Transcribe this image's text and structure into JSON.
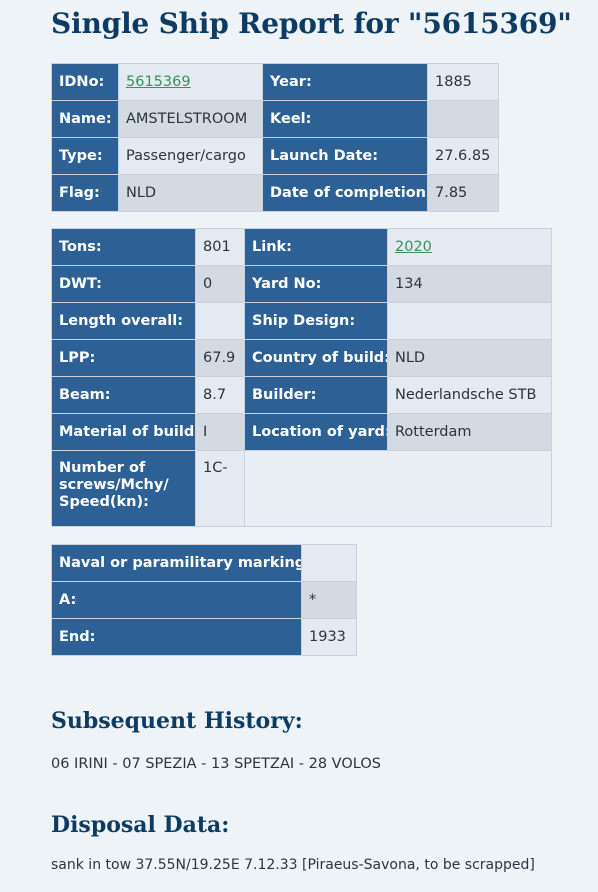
{
  "page_title": "Single Ship Report for \"5615369\"",
  "table1": {
    "idno_label": "IDNo:",
    "idno_value": "5615369",
    "year_label": "Year:",
    "year_value": "1885",
    "name_label": "Name:",
    "name_value": "AMSTELSTROOM",
    "keel_label": "Keel:",
    "keel_value": "",
    "type_label": "Type:",
    "type_value": "Passenger/cargo",
    "launch_label": "Launch Date:",
    "launch_value": "27.6.85",
    "flag_label": "Flag:",
    "flag_value": "NLD",
    "completion_label": "Date of completion:",
    "completion_value": "7.85"
  },
  "table2": {
    "tons_label": "Tons:",
    "tons_value": "801",
    "link_label": "Link:",
    "link_value": "2020",
    "dwt_label": "DWT:",
    "dwt_value": "0",
    "yard_label": "Yard No:",
    "yard_value": "134",
    "length_label": "Length overall:",
    "length_value": "",
    "design_label": "Ship Design:",
    "design_value": "",
    "lpp_label": "LPP:",
    "lpp_value": "67.9",
    "country_label": "Country of build:",
    "country_value": "NLD",
    "beam_label": "Beam:",
    "beam_value": "8.7",
    "builder_label": "Builder:",
    "builder_value": "Nederlandsche STB",
    "material_label": "Material of build:",
    "material_value": "I",
    "location_label": "Location of yard:",
    "location_value": "Rotterdam",
    "screws_label": "Number of screws/Mchy/ Speed(kn):",
    "screws_value": "1C-"
  },
  "table3": {
    "naval_label": "Naval or paramilitary marking :",
    "naval_value": "",
    "a_label": "A:",
    "a_value": "*",
    "end_label": "End:",
    "end_value": "1933"
  },
  "history": {
    "heading": "Subsequent History:",
    "text": "06 IRINI - 07 SPEZIA - 13 SPETZAI - 28 VOLOS"
  },
  "disposal": {
    "heading": "Disposal Data:",
    "text": "sank in tow 37.55N/19.25E 7.12.33 [Piraeus-Savona, to be scrapped]"
  },
  "colors": {
    "label_bg": "#2d6196",
    "heading": "#0e3b63",
    "link": "#3d8f5c",
    "page_bg": "#eef3f8"
  }
}
